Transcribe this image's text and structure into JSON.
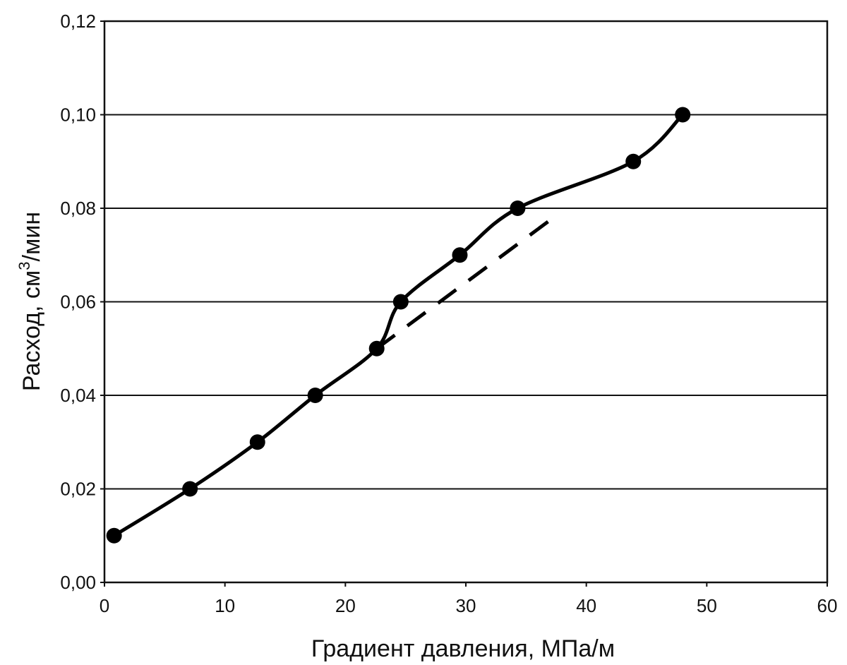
{
  "chart_data": {
    "type": "line",
    "title": "",
    "xlabel": "Градиент давления, МПа/м",
    "ylabel_main": "Расход, см",
    "ylabel_sup": "3",
    "ylabel_tail": "/мин",
    "xlim": [
      0,
      60
    ],
    "ylim": [
      0,
      0.12
    ],
    "x_ticks": [
      0,
      10,
      20,
      30,
      40,
      50,
      60
    ],
    "x_tick_labels": [
      "0",
      "10",
      "20",
      "30",
      "40",
      "50",
      "60"
    ],
    "y_ticks": [
      0,
      0.02,
      0.04,
      0.06,
      0.08,
      0.1,
      0.12
    ],
    "y_tick_labels": [
      "0,00",
      "0,02",
      "0,04",
      "0,06",
      "0,08",
      "0,10",
      "0,12"
    ],
    "grid": "horizontal",
    "series": [
      {
        "style": "solid-with-markers",
        "x": [
          0.8,
          7.1,
          12.7,
          17.5,
          22.6,
          24.6,
          29.5,
          34.3,
          43.9,
          48.0
        ],
        "y": [
          0.01,
          0.02,
          0.03,
          0.04,
          0.05,
          0.06,
          0.07,
          0.08,
          0.09,
          0.1
        ]
      },
      {
        "style": "dashed",
        "x": [
          22.6,
          37.8
        ],
        "y": [
          0.05,
          0.079
        ]
      }
    ]
  }
}
